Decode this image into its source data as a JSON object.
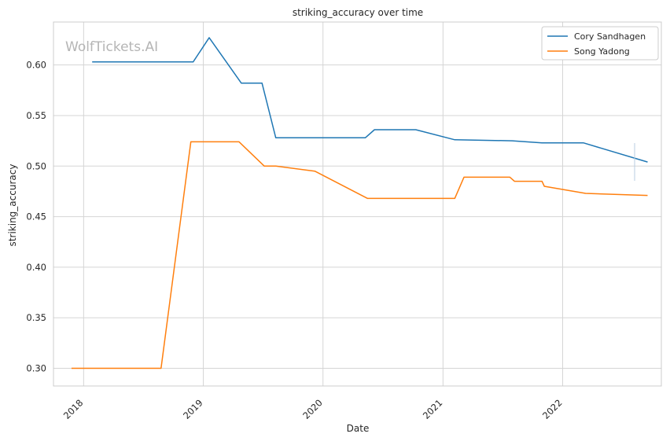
{
  "chart_data": {
    "type": "line",
    "title": "striking_accuracy over time",
    "xlabel": "Date",
    "ylabel": "striking_accuracy",
    "watermark": "WolfTickets.AI",
    "x_ticks": [
      "2018",
      "2019",
      "2020",
      "2021",
      "2022"
    ],
    "y_ticks": [
      "0.30",
      "0.35",
      "0.40",
      "0.45",
      "0.50",
      "0.55",
      "0.60"
    ],
    "xlim": [
      "2017-10-01",
      "2022-10-29"
    ],
    "ylim": [
      0.2825,
      0.6425
    ],
    "grid": true,
    "legend_position": "top-right",
    "series": [
      {
        "name": "Cory Sandhagen",
        "color": "#1f77b4",
        "points": [
          [
            "2018-01-27",
            0.603
          ],
          [
            "2018-12-01",
            0.603
          ],
          [
            "2019-01-19",
            0.627
          ],
          [
            "2019-04-27",
            0.582
          ],
          [
            "2019-06-29",
            0.582
          ],
          [
            "2019-08-10",
            0.528
          ],
          [
            "2020-05-09",
            0.528
          ],
          [
            "2020-06-06",
            0.536
          ],
          [
            "2020-10-10",
            0.536
          ],
          [
            "2021-02-06",
            0.526
          ],
          [
            "2021-07-31",
            0.525
          ],
          [
            "2021-10-30",
            0.523
          ],
          [
            "2022-03-05",
            0.523
          ],
          [
            "2022-09-17",
            0.504
          ]
        ]
      },
      {
        "name": "Song Yadong",
        "color": "#ff7f0e",
        "points": [
          [
            "2017-11-25",
            0.3
          ],
          [
            "2018-08-25",
            0.3
          ],
          [
            "2018-11-24",
            0.524
          ],
          [
            "2019-04-20",
            0.524
          ],
          [
            "2019-07-06",
            0.5
          ],
          [
            "2019-08-10",
            0.5
          ],
          [
            "2019-12-07",
            0.495
          ],
          [
            "2020-05-16",
            0.468
          ],
          [
            "2021-02-06",
            0.468
          ],
          [
            "2021-03-06",
            0.489
          ],
          [
            "2021-07-24",
            0.489
          ],
          [
            "2021-08-07",
            0.485
          ],
          [
            "2021-10-30",
            0.485
          ],
          [
            "2021-11-06",
            0.48
          ],
          [
            "2022-03-12",
            0.473
          ],
          [
            "2022-09-17",
            0.471
          ]
        ]
      }
    ]
  }
}
